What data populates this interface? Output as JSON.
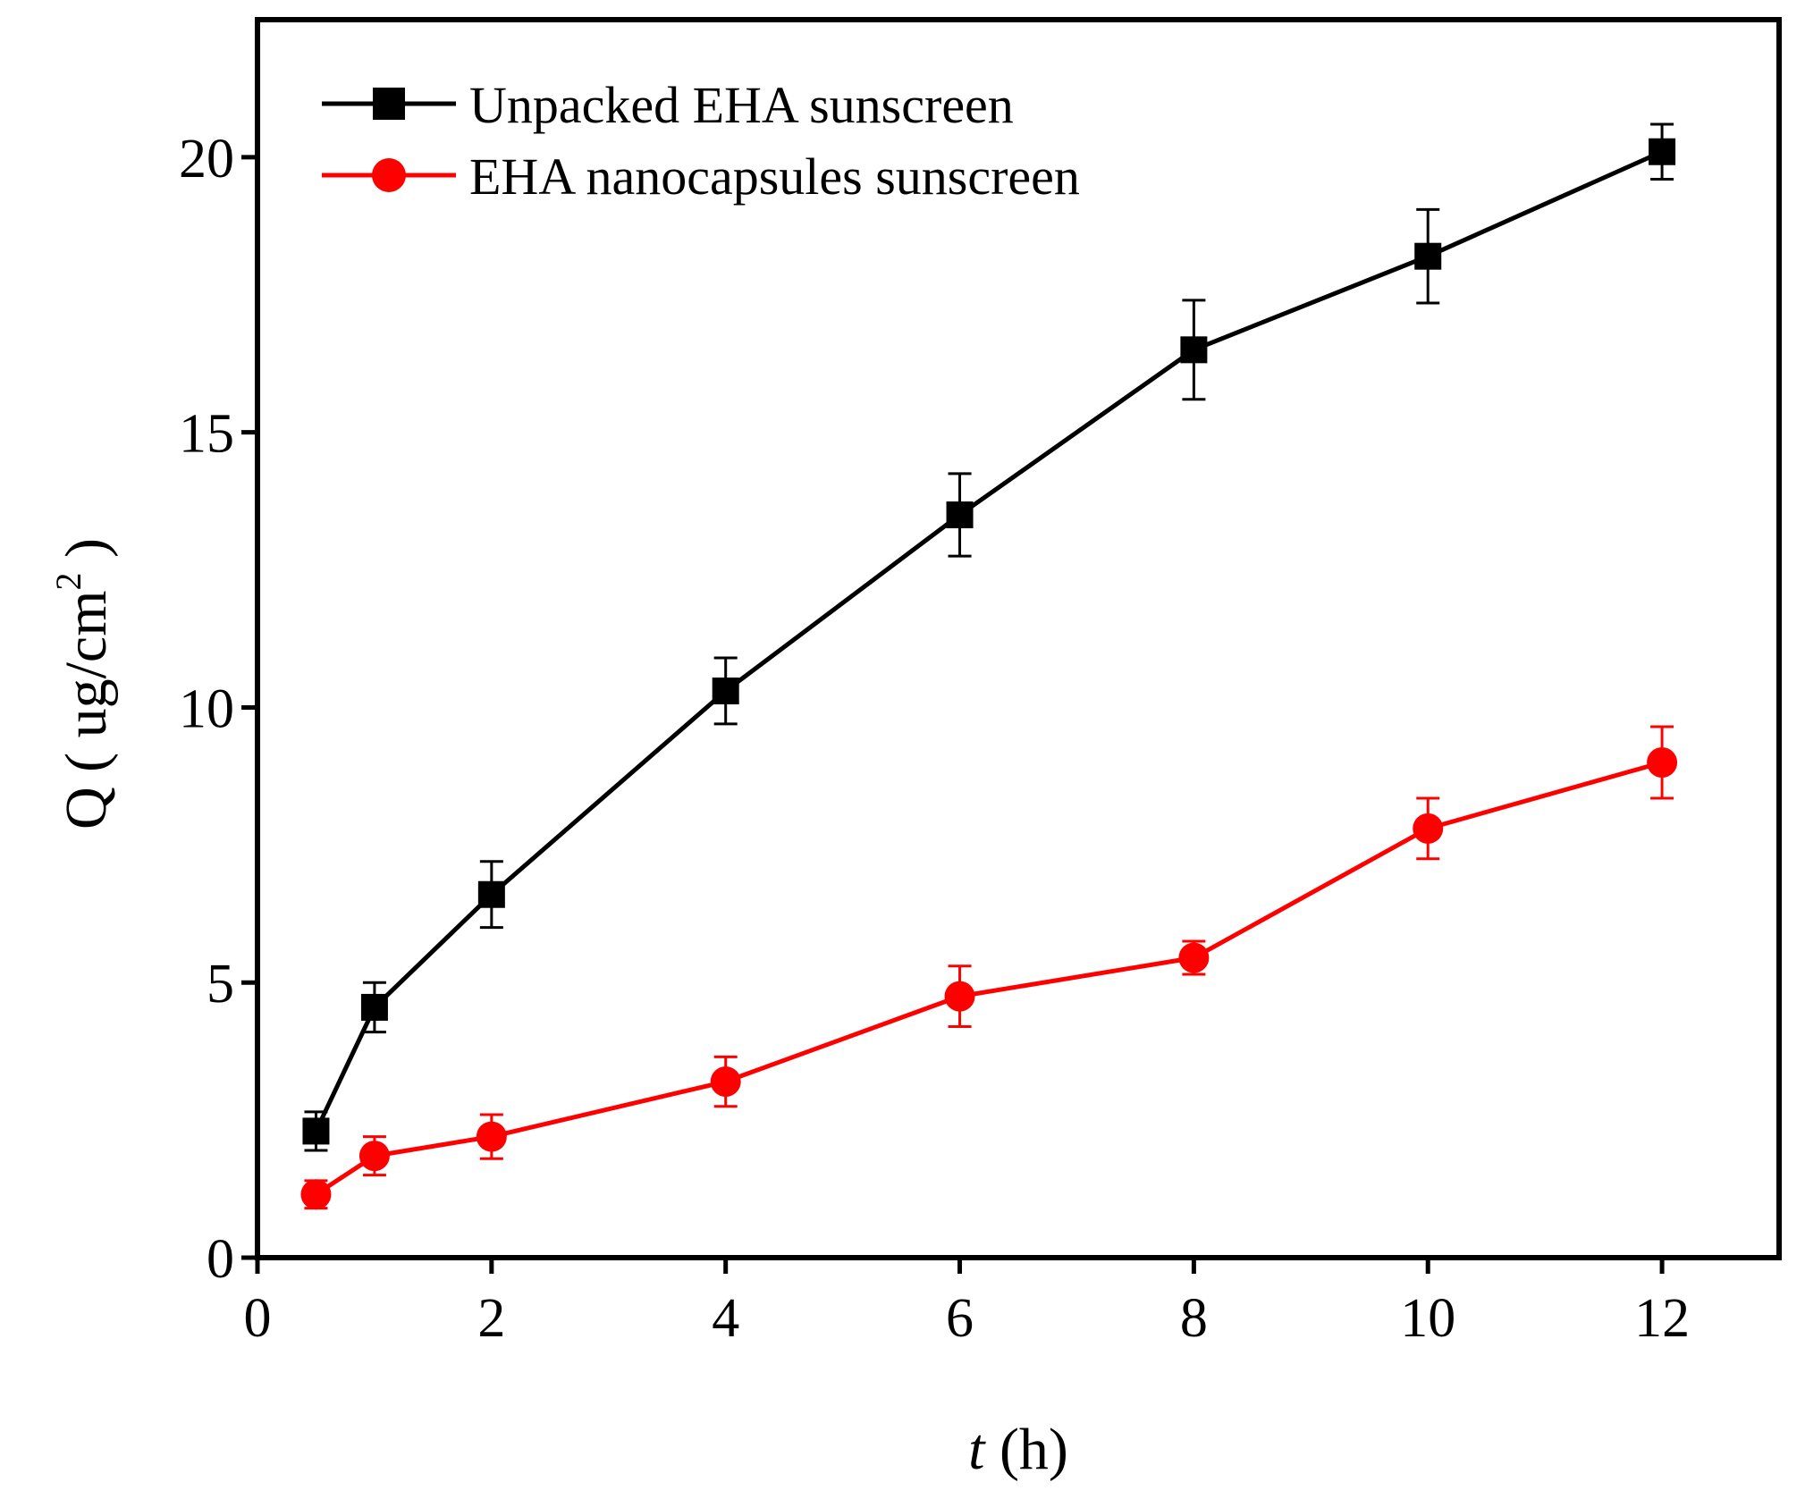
{
  "chart_data": {
    "type": "line",
    "title": "",
    "xlabel": "t (h)",
    "xlabel_parts": {
      "var": "t",
      "rest": " (h)"
    },
    "ylabel": "Q ( ug/cm2 )",
    "ylabel_parts": {
      "main": "Q ( ug/cm",
      "sup": "2",
      "close": " )"
    },
    "xlim": [
      0,
      13
    ],
    "ylim": [
      0,
      22.5
    ],
    "x_ticks": [
      0,
      2,
      4,
      6,
      8,
      10,
      12
    ],
    "y_ticks": [
      0,
      5,
      10,
      15,
      20
    ],
    "grid": false,
    "legend_position": "top-left",
    "x": [
      0.5,
      1,
      2,
      4,
      6,
      8,
      10,
      12
    ],
    "series": [
      {
        "name": "Unpacked EHA sunscreen",
        "color": "#000000",
        "marker": "square",
        "values": [
          2.3,
          4.55,
          6.6,
          10.3,
          13.5,
          16.5,
          18.2,
          20.1
        ],
        "errors": [
          0.35,
          0.45,
          0.6,
          0.6,
          0.75,
          0.9,
          0.85,
          0.5
        ]
      },
      {
        "name": "EHA nanocapsules sunscreen",
        "color": "#ff0000",
        "marker": "circle",
        "values": [
          1.15,
          1.85,
          2.2,
          3.2,
          4.75,
          5.45,
          7.8,
          9.0
        ],
        "errors": [
          0.25,
          0.35,
          0.4,
          0.45,
          0.55,
          0.3,
          0.55,
          0.65
        ]
      }
    ]
  }
}
